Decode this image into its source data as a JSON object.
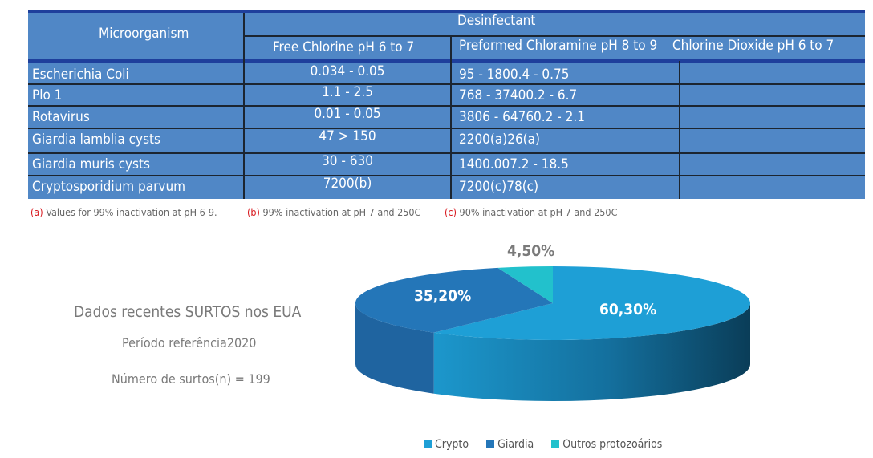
{
  "table": {
    "header_microorganism": "Microorganism",
    "header_group": "Desinfectant",
    "columns": [
      "Free Chlorine pH 6 to 7",
      "Preformed Chloramine pH 8 to 9",
      "Chlorine Dioxide pH 6 to 7"
    ],
    "rows": [
      {
        "name": "Escherichia Coli",
        "free": "0.034 - 0.05",
        "chloramine": "95 - 1800.4 - 0.75",
        "dioxide": ""
      },
      {
        "name": "Plo 1",
        "free": "1.1 - 2.5",
        "chloramine": "768 - 37400.2 - 6.7",
        "dioxide": ""
      },
      {
        "name": "Rotavirus",
        "free": "0.01 - 0.05",
        "chloramine": "3806 - 64760.2 - 2.1",
        "dioxide": ""
      },
      {
        "name": "Giardia lamblia cysts",
        "free": "47 > 150",
        "chloramine": "2200(a)26(a)",
        "dioxide": ""
      },
      {
        "name": "Giardia muris cysts",
        "free": "30 - 630",
        "chloramine": "1400.007.2 - 18.5",
        "dioxide": ""
      },
      {
        "name": "Cryptosporidium parvum",
        "free": "7200(b)",
        "chloramine": "7200(c)78(c)",
        "dioxide": ""
      }
    ]
  },
  "notes": [
    {
      "mark": "(a)",
      "text": "Values for 99% inactivation at pH 6-9."
    },
    {
      "mark": "(b)",
      "text": "99% inactivation at pH 7 and 250C"
    },
    {
      "mark": "(c)",
      "text": "90% inactivation at pH 7 and 250C"
    }
  ],
  "info": {
    "title": "Dados recentes SURTOS nos EUA",
    "period": "Período referência2020",
    "count": "Número de surtos(n) = 199"
  },
  "chart_data": {
    "type": "pie",
    "style": "3d",
    "categories": [
      "Crypto",
      "Giardia",
      "Outros protozoários"
    ],
    "values": [
      60.3,
      35.2,
      4.5
    ],
    "labels": [
      "60,30%",
      "35,20%",
      "4,50%"
    ],
    "colors": [
      "#1e9fd6",
      "#2476b8",
      "#22c1cc"
    ],
    "legend": "bottom"
  }
}
